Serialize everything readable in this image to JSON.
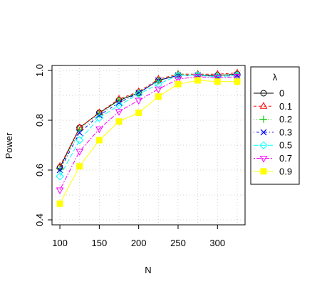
{
  "chart_data": {
    "type": "line",
    "title": "",
    "xlabel": "N",
    "ylabel": "Power",
    "x": [
      100,
      125,
      150,
      175,
      200,
      225,
      250,
      275,
      300,
      325
    ],
    "xlim": [
      90,
      335
    ],
    "ylim": [
      0.38,
      1.02
    ],
    "xticks": [
      "100",
      "150",
      "200",
      "250",
      "300"
    ],
    "yticks": [
      "0.4",
      "0.6",
      "0.8",
      "1.0"
    ],
    "grid": true,
    "legend_title": "λ",
    "legend_position": "right",
    "series": [
      {
        "name": "0",
        "color": "#000000",
        "marker": "circle",
        "dash": "solid",
        "values": [
          0.61,
          0.77,
          0.83,
          0.88,
          0.91,
          0.96,
          0.98,
          0.98,
          0.98,
          0.985
        ]
      },
      {
        "name": "0.1",
        "color": "#ff0000",
        "marker": "triangle-up",
        "dash": "dashed",
        "values": [
          0.615,
          0.77,
          0.83,
          0.885,
          0.915,
          0.965,
          0.985,
          0.985,
          0.985,
          0.99
        ]
      },
      {
        "name": "0.2",
        "color": "#00cd00",
        "marker": "plus",
        "dash": "dotted",
        "values": [
          0.605,
          0.76,
          0.825,
          0.88,
          0.91,
          0.96,
          0.985,
          0.985,
          0.98,
          0.985
        ]
      },
      {
        "name": "0.3",
        "color": "#0000ff",
        "marker": "cross",
        "dash": "dotdash",
        "values": [
          0.6,
          0.75,
          0.82,
          0.87,
          0.91,
          0.96,
          0.98,
          0.98,
          0.975,
          0.98
        ]
      },
      {
        "name": "0.5",
        "color": "#00ffff",
        "marker": "diamond",
        "dash": "longdash",
        "values": [
          0.575,
          0.72,
          0.81,
          0.86,
          0.905,
          0.945,
          0.98,
          0.98,
          0.975,
          0.98
        ]
      },
      {
        "name": "0.7",
        "color": "#ff00ff",
        "marker": "triangle-down",
        "dash": "twodash",
        "values": [
          0.52,
          0.675,
          0.765,
          0.835,
          0.88,
          0.925,
          0.965,
          0.975,
          0.97,
          0.975
        ]
      },
      {
        "name": "0.9",
        "color": "#ffff00",
        "marker": "square-filled",
        "dash": "solid",
        "values": [
          0.465,
          0.615,
          0.72,
          0.795,
          0.83,
          0.895,
          0.945,
          0.96,
          0.955,
          0.955
        ]
      }
    ]
  }
}
